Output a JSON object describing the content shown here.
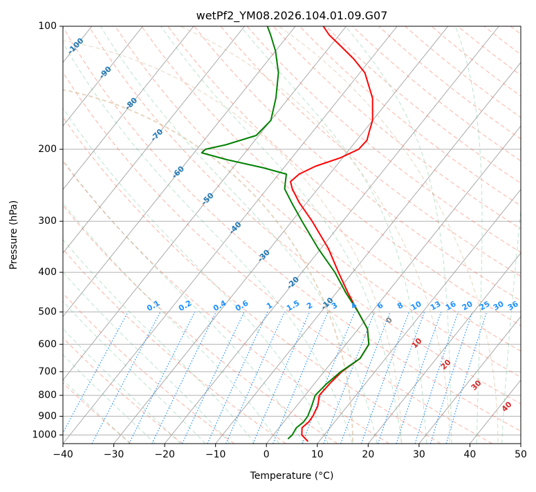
{
  "chart_data": {
    "type": "skew-t",
    "title": "wetPf2_YM08.2026.104.01.09.G07",
    "xlabel": "Temperature (°C)",
    "ylabel": "Pressure (hPa)",
    "xlim": [
      -40,
      50
    ],
    "ylim": [
      1050,
      100
    ],
    "x_ticks": [
      -40,
      -30,
      -20,
      -10,
      0,
      10,
      20,
      30,
      40,
      50
    ],
    "x_tick_labels": [
      "−40",
      "−30",
      "−20",
      "−10",
      "0",
      "10",
      "20",
      "30",
      "40",
      "50"
    ],
    "y_ticks": [
      100,
      200,
      300,
      400,
      500,
      600,
      700,
      800,
      900,
      1000
    ],
    "y_tick_labels": [
      "100",
      "200",
      "300",
      "400",
      "500",
      "600",
      "700",
      "800",
      "900",
      "1000"
    ],
    "colors": {
      "temperature": "#ff0000",
      "dewpoint": "#008000",
      "isotherm": "#a9a9a9",
      "dry_adiabat": "#ff6347",
      "moist_adiabat": "#3cb371",
      "mixing_ratio": "#1e90ff",
      "wet_bulb_label": "#1f77b4",
      "dry_label": "#d62728",
      "zero_label": "#808080"
    },
    "series": [
      {
        "name": "Temperature",
        "color": "#ff0000",
        "points": [
          {
            "p": 1035,
            "t": 7.7
          },
          {
            "p": 1000,
            "t": 5.6
          },
          {
            "p": 960,
            "t": 4.5
          },
          {
            "p": 930,
            "t": 4.9
          },
          {
            "p": 900,
            "t": 4.8
          },
          {
            "p": 850,
            "t": 4.2
          },
          {
            "p": 800,
            "t": 2.8
          },
          {
            "p": 750,
            "t": 3.0
          },
          {
            "p": 700,
            "t": 3.5
          },
          {
            "p": 650,
            "t": 5.0
          },
          {
            "p": 600,
            "t": 4.5
          },
          {
            "p": 550,
            "t": 1.8
          },
          {
            "p": 500,
            "t": -2.7
          },
          {
            "p": 450,
            "t": -7.6
          },
          {
            "p": 400,
            "t": -12.8
          },
          {
            "p": 350,
            "t": -18.5
          },
          {
            "p": 300,
            "t": -26.0
          },
          {
            "p": 270,
            "t": -31.5
          },
          {
            "p": 250,
            "t": -35.0
          },
          {
            "p": 240,
            "t": -36.5
          },
          {
            "p": 230,
            "t": -36.0
          },
          {
            "p": 220,
            "t": -34.0
          },
          {
            "p": 210,
            "t": -30.5
          },
          {
            "p": 200,
            "t": -28.2
          },
          {
            "p": 190,
            "t": -28.0
          },
          {
            "p": 180,
            "t": -29.0
          },
          {
            "p": 170,
            "t": -30.0
          },
          {
            "p": 150,
            "t": -33.5
          },
          {
            "p": 130,
            "t": -39.0
          },
          {
            "p": 120,
            "t": -43.5
          },
          {
            "p": 110,
            "t": -49.0
          },
          {
            "p": 105,
            "t": -52.0
          },
          {
            "p": 100,
            "t": -54.5
          }
        ]
      },
      {
        "name": "Dewpoint",
        "color": "#008000",
        "points": [
          {
            "p": 1020,
            "t": 3.5
          },
          {
            "p": 1000,
            "t": 3.7
          },
          {
            "p": 960,
            "t": 3.4
          },
          {
            "p": 930,
            "t": 3.9
          },
          {
            "p": 900,
            "t": 3.8
          },
          {
            "p": 850,
            "t": 3.0
          },
          {
            "p": 800,
            "t": 2.0
          },
          {
            "p": 750,
            "t": 2.4
          },
          {
            "p": 700,
            "t": 3.3
          },
          {
            "p": 650,
            "t": 5.0
          },
          {
            "p": 600,
            "t": 4.5
          },
          {
            "p": 550,
            "t": 1.8
          },
          {
            "p": 500,
            "t": -2.7
          },
          {
            "p": 450,
            "t": -8.0
          },
          {
            "p": 400,
            "t": -13.5
          },
          {
            "p": 350,
            "t": -20.5
          },
          {
            "p": 300,
            "t": -28.0
          },
          {
            "p": 270,
            "t": -33.0
          },
          {
            "p": 250,
            "t": -36.5
          },
          {
            "p": 240,
            "t": -37.5
          },
          {
            "p": 230,
            "t": -38.5
          },
          {
            "p": 222,
            "t": -44.0
          },
          {
            "p": 212,
            "t": -52.5
          },
          {
            "p": 204,
            "t": -58.5
          },
          {
            "p": 200,
            "t": -58.3
          },
          {
            "p": 195,
            "t": -55.0
          },
          {
            "p": 185,
            "t": -50.5
          },
          {
            "p": 170,
            "t": -50.0
          },
          {
            "p": 150,
            "t": -52.5
          },
          {
            "p": 130,
            "t": -56.0
          },
          {
            "p": 115,
            "t": -60.0
          },
          {
            "p": 105,
            "t": -63.5
          },
          {
            "p": 100,
            "t": -65.5
          }
        ]
      }
    ],
    "wet_bulb_labels": [
      "-100",
      "-90",
      "-80",
      "-70",
      "-60",
      "-50",
      "-40",
      "-30",
      "-20",
      "-10"
    ],
    "mixing_ratio_labels": [
      "0.1",
      "0.2",
      "0.4",
      "0.6",
      "1",
      "1.5",
      "2",
      "3",
      "4",
      "6",
      "8",
      "10",
      "13",
      "16",
      "20",
      "25",
      "30",
      "36"
    ],
    "dry_adiabat_labels": [
      "0",
      "10",
      "20",
      "30",
      "40"
    ]
  }
}
